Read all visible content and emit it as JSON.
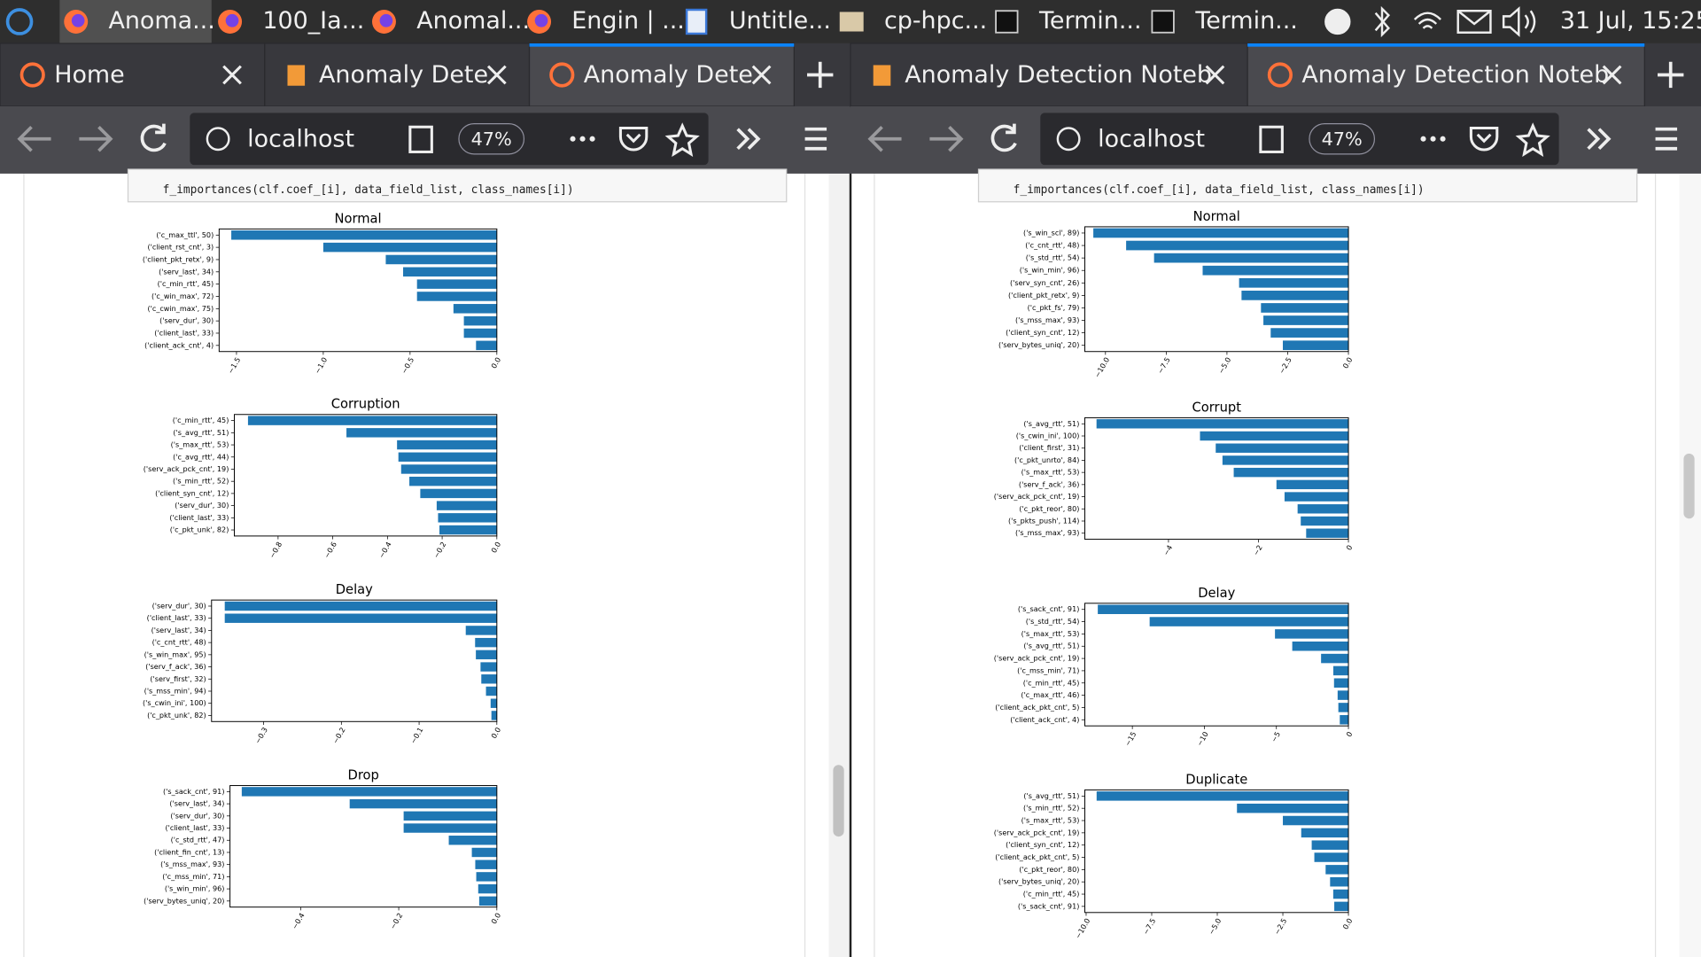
{
  "taskbar": {
    "items": [
      "Anoma...",
      "100_Ia...",
      "Anomal...",
      "Engin | ...",
      "Untitle...",
      "cp-hpc...",
      "Termin...",
      "Termin..."
    ],
    "clock": "31 Jul, 15:25"
  },
  "windows": [
    {
      "tabs": [
        "Home",
        "Anomaly Dete",
        "Anomaly Dete"
      ],
      "url": "localhost",
      "zoom": "47%",
      "code": "f_importances(clf.coef_[i], data_field_list, class_names[i])",
      "charts": [
        {
          "type": "bar",
          "title": "Normal",
          "categories": [
            "('c_max_ttl', 50)",
            "('client_rst_cnt', 3)",
            "('client_pkt_retx', 9)",
            "('serv_last', 34)",
            "('c_min_rtt', 45)",
            "('c_win_max', 72)",
            "('c_cwin_max', 75)",
            "('serv_dur', 30)",
            "('client_last', 33)",
            "('client_ack_cnt', 4)"
          ],
          "values": [
            -1.53,
            -1.0,
            -0.64,
            -0.54,
            -0.46,
            -0.46,
            -0.25,
            -0.19,
            -0.19,
            -0.12
          ],
          "color": "#1f77b4",
          "xlim": [
            -1.6,
            0
          ],
          "xticks": [
            {
              "value": -1.5,
              "label": "−1.5"
            },
            {
              "value": -1.0,
              "label": "−1.0"
            },
            {
              "value": -0.5,
              "label": "−0.5"
            },
            {
              "value": 0,
              "label": "0.0"
            }
          ]
        },
        {
          "type": "bar",
          "title": "Corruption",
          "categories": [
            "('c_min_rtt', 45)",
            "('s_avg_rtt', 51)",
            "('s_max_rtt', 53)",
            "('c_avg_rtt', 44)",
            "('serv_ack_pck_cnt', 19)",
            "('s_min_rtt', 52)",
            "('client_syn_cnt', 12)",
            "('serv_dur', 30)",
            "('client_last', 33)",
            "('c_pkt_unk', 82)"
          ],
          "values": [
            -0.91,
            -0.55,
            -0.365,
            -0.36,
            -0.35,
            -0.32,
            -0.28,
            -0.22,
            -0.215,
            -0.21
          ],
          "color": "#1f77b4",
          "xlim": [
            -0.96,
            0
          ],
          "xticks": [
            {
              "value": -0.8,
              "label": "−0.8"
            },
            {
              "value": -0.6,
              "label": "−0.6"
            },
            {
              "value": -0.4,
              "label": "−0.4"
            },
            {
              "value": -0.2,
              "label": "−0.2"
            },
            {
              "value": 0,
              "label": "0.0"
            }
          ]
        },
        {
          "type": "bar",
          "title": "Delay",
          "categories": [
            "('serv_dur', 30)",
            "('client_last', 33)",
            "('serv_last', 34)",
            "('c_cnt_rtt', 48)",
            "('s_win_max', 95)",
            "('serv_f_ack', 36)",
            "('serv_first', 32)",
            "('s_mss_min', 94)",
            "('s_cwin_ini', 100)",
            "('c_pkt_unk', 82)"
          ],
          "values": [
            -0.35,
            -0.35,
            -0.04,
            -0.028,
            -0.027,
            -0.021,
            -0.02,
            -0.014,
            -0.008,
            -0.007
          ],
          "color": "#1f77b4",
          "xlim": [
            -0.367,
            0
          ],
          "xticks": [
            {
              "value": -0.3,
              "label": "−0.3"
            },
            {
              "value": -0.2,
              "label": "−0.2"
            },
            {
              "value": -0.1,
              "label": "−0.1"
            },
            {
              "value": 0,
              "label": "0.0"
            }
          ]
        },
        {
          "type": "bar",
          "title": "Drop",
          "categories": [
            "('s_sack_cnt', 91)",
            "('serv_last', 34)",
            "('serv_dur', 30)",
            "('client_last', 33)",
            "('c_std_rtt', 47)",
            "('client_fin_cnt', 13)",
            "('s_mss_max', 93)",
            "('c_mss_min', 71)",
            "('s_win_min', 96)",
            "('serv_bytes_uniq', 20)"
          ],
          "values": [
            -0.52,
            -0.3,
            -0.19,
            -0.19,
            -0.098,
            -0.051,
            -0.044,
            -0.042,
            -0.038,
            -0.036
          ],
          "color": "#1f77b4",
          "xlim": [
            -0.544,
            0
          ],
          "xticks": [
            {
              "value": -0.4,
              "label": "−0.4"
            },
            {
              "value": -0.2,
              "label": "−0.2"
            },
            {
              "value": 0,
              "label": "0.0"
            }
          ]
        }
      ]
    },
    {
      "tabs": [
        "Anomaly Detection Noteb",
        "Anomaly Detection Noteb"
      ],
      "url": "localhost",
      "zoom": "47%",
      "code": "f_importances(clf.coef_[i], data_field_list, class_names[i])",
      "charts": [
        {
          "type": "bar",
          "title": "Normal",
          "categories": [
            "('s_win_scl', 89)",
            "('c_cnt_rtt', 48)",
            "('s_std_rtt', 54)",
            "('s_win_min', 96)",
            "('serv_syn_cnt', 26)",
            "('client_pkt_retx', 9)",
            "('c_pkt_fs', 79)",
            "('s_mss_max', 93)",
            "('client_syn_cnt', 12)",
            "('serv_bytes_uniq', 20)"
          ],
          "values": [
            -10.5,
            -9.15,
            -8.0,
            -6.0,
            -4.5,
            -4.4,
            -3.6,
            -3.5,
            -3.2,
            -2.7
          ],
          "color": "#1f77b4",
          "xlim": [
            -10.85,
            0
          ],
          "xticks": [
            {
              "value": -10,
              "label": "−10.0"
            },
            {
              "value": -7.5,
              "label": "−7.5"
            },
            {
              "value": -5,
              "label": "−5.0"
            },
            {
              "value": -2.5,
              "label": "−2.5"
            },
            {
              "value": 0,
              "label": "0.0"
            }
          ]
        },
        {
          "type": "bar",
          "title": "Corrupt",
          "categories": [
            "('s_avg_rtt', 51)",
            "('s_cwin_ini', 100)",
            "('client_first', 31)",
            "('c_pkt_unrto', 84)",
            "('s_max_rtt', 53)",
            "('serv_f_ack', 36)",
            "('serv_ack_pck_cnt', 19)",
            "('c_pkt_reor', 80)",
            "('s_pkts_push', 114)",
            "('s_mss_max', 93)"
          ],
          "values": [
            -5.6,
            -3.3,
            -2.95,
            -2.8,
            -2.55,
            -1.6,
            -1.42,
            -1.13,
            -1.06,
            -0.94
          ],
          "color": "#1f77b4",
          "xlim": [
            -5.86,
            0
          ],
          "xticks": [
            {
              "value": -4,
              "label": "−4"
            },
            {
              "value": -2,
              "label": "−2"
            },
            0
          ]
        },
        {
          "type": "bar",
          "title": "Delay",
          "categories": [
            "('s_sack_cnt', 91)",
            "('s_std_rtt', 54)",
            "('s_max_rtt', 53)",
            "('s_avg_rtt', 51)",
            "('serv_ack_pck_cnt', 19)",
            "('c_mss_min', 71)",
            "('c_min_rtt', 45)",
            "('c_max_rtt', 46)",
            "('client_ack_pkt_cnt', 5)",
            "('client_ack_cnt', 4)"
          ],
          "values": [
            -17.4,
            -13.8,
            -5.1,
            -3.9,
            -1.9,
            -1.05,
            -1.0,
            -0.75,
            -0.7,
            -0.6
          ],
          "color": "#1f77b4",
          "xlim": [
            -18.3,
            0
          ],
          "xticks": [
            {
              "value": -15,
              "label": "−15"
            },
            {
              "value": -10,
              "label": "−10"
            },
            {
              "value": -5,
              "label": "−5"
            },
            0
          ]
        },
        {
          "type": "bar",
          "title": "Duplicate",
          "categories": [
            "('s_avg_rtt', 51)",
            "('s_min_rtt', 52)",
            "('s_max_rtt', 53)",
            "('serv_ack_pck_cnt', 19)",
            "('client_syn_cnt', 12)",
            "('client_ack_pkt_cnt', 5)",
            "('c_pkt_reor', 80)",
            "('serv_bytes_uniq', 20)",
            "('c_min_rtt', 45)",
            "('s_sack_cnt', 91)"
          ],
          "values": [
            -9.6,
            -4.25,
            -2.5,
            -1.8,
            -1.4,
            -1.3,
            -0.87,
            -0.7,
            -0.58,
            -0.54
          ],
          "color": "#1f77b4",
          "xlim": [
            -10.05,
            0
          ],
          "xticks": [
            {
              "value": -10,
              "label": "−10.0"
            },
            {
              "value": -7.5,
              "label": "−7.5"
            },
            {
              "value": -5,
              "label": "−5.0"
            },
            {
              "value": -2.5,
              "label": "−2.5"
            },
            {
              "value": 0,
              "label": "0.0"
            }
          ]
        }
      ]
    }
  ]
}
